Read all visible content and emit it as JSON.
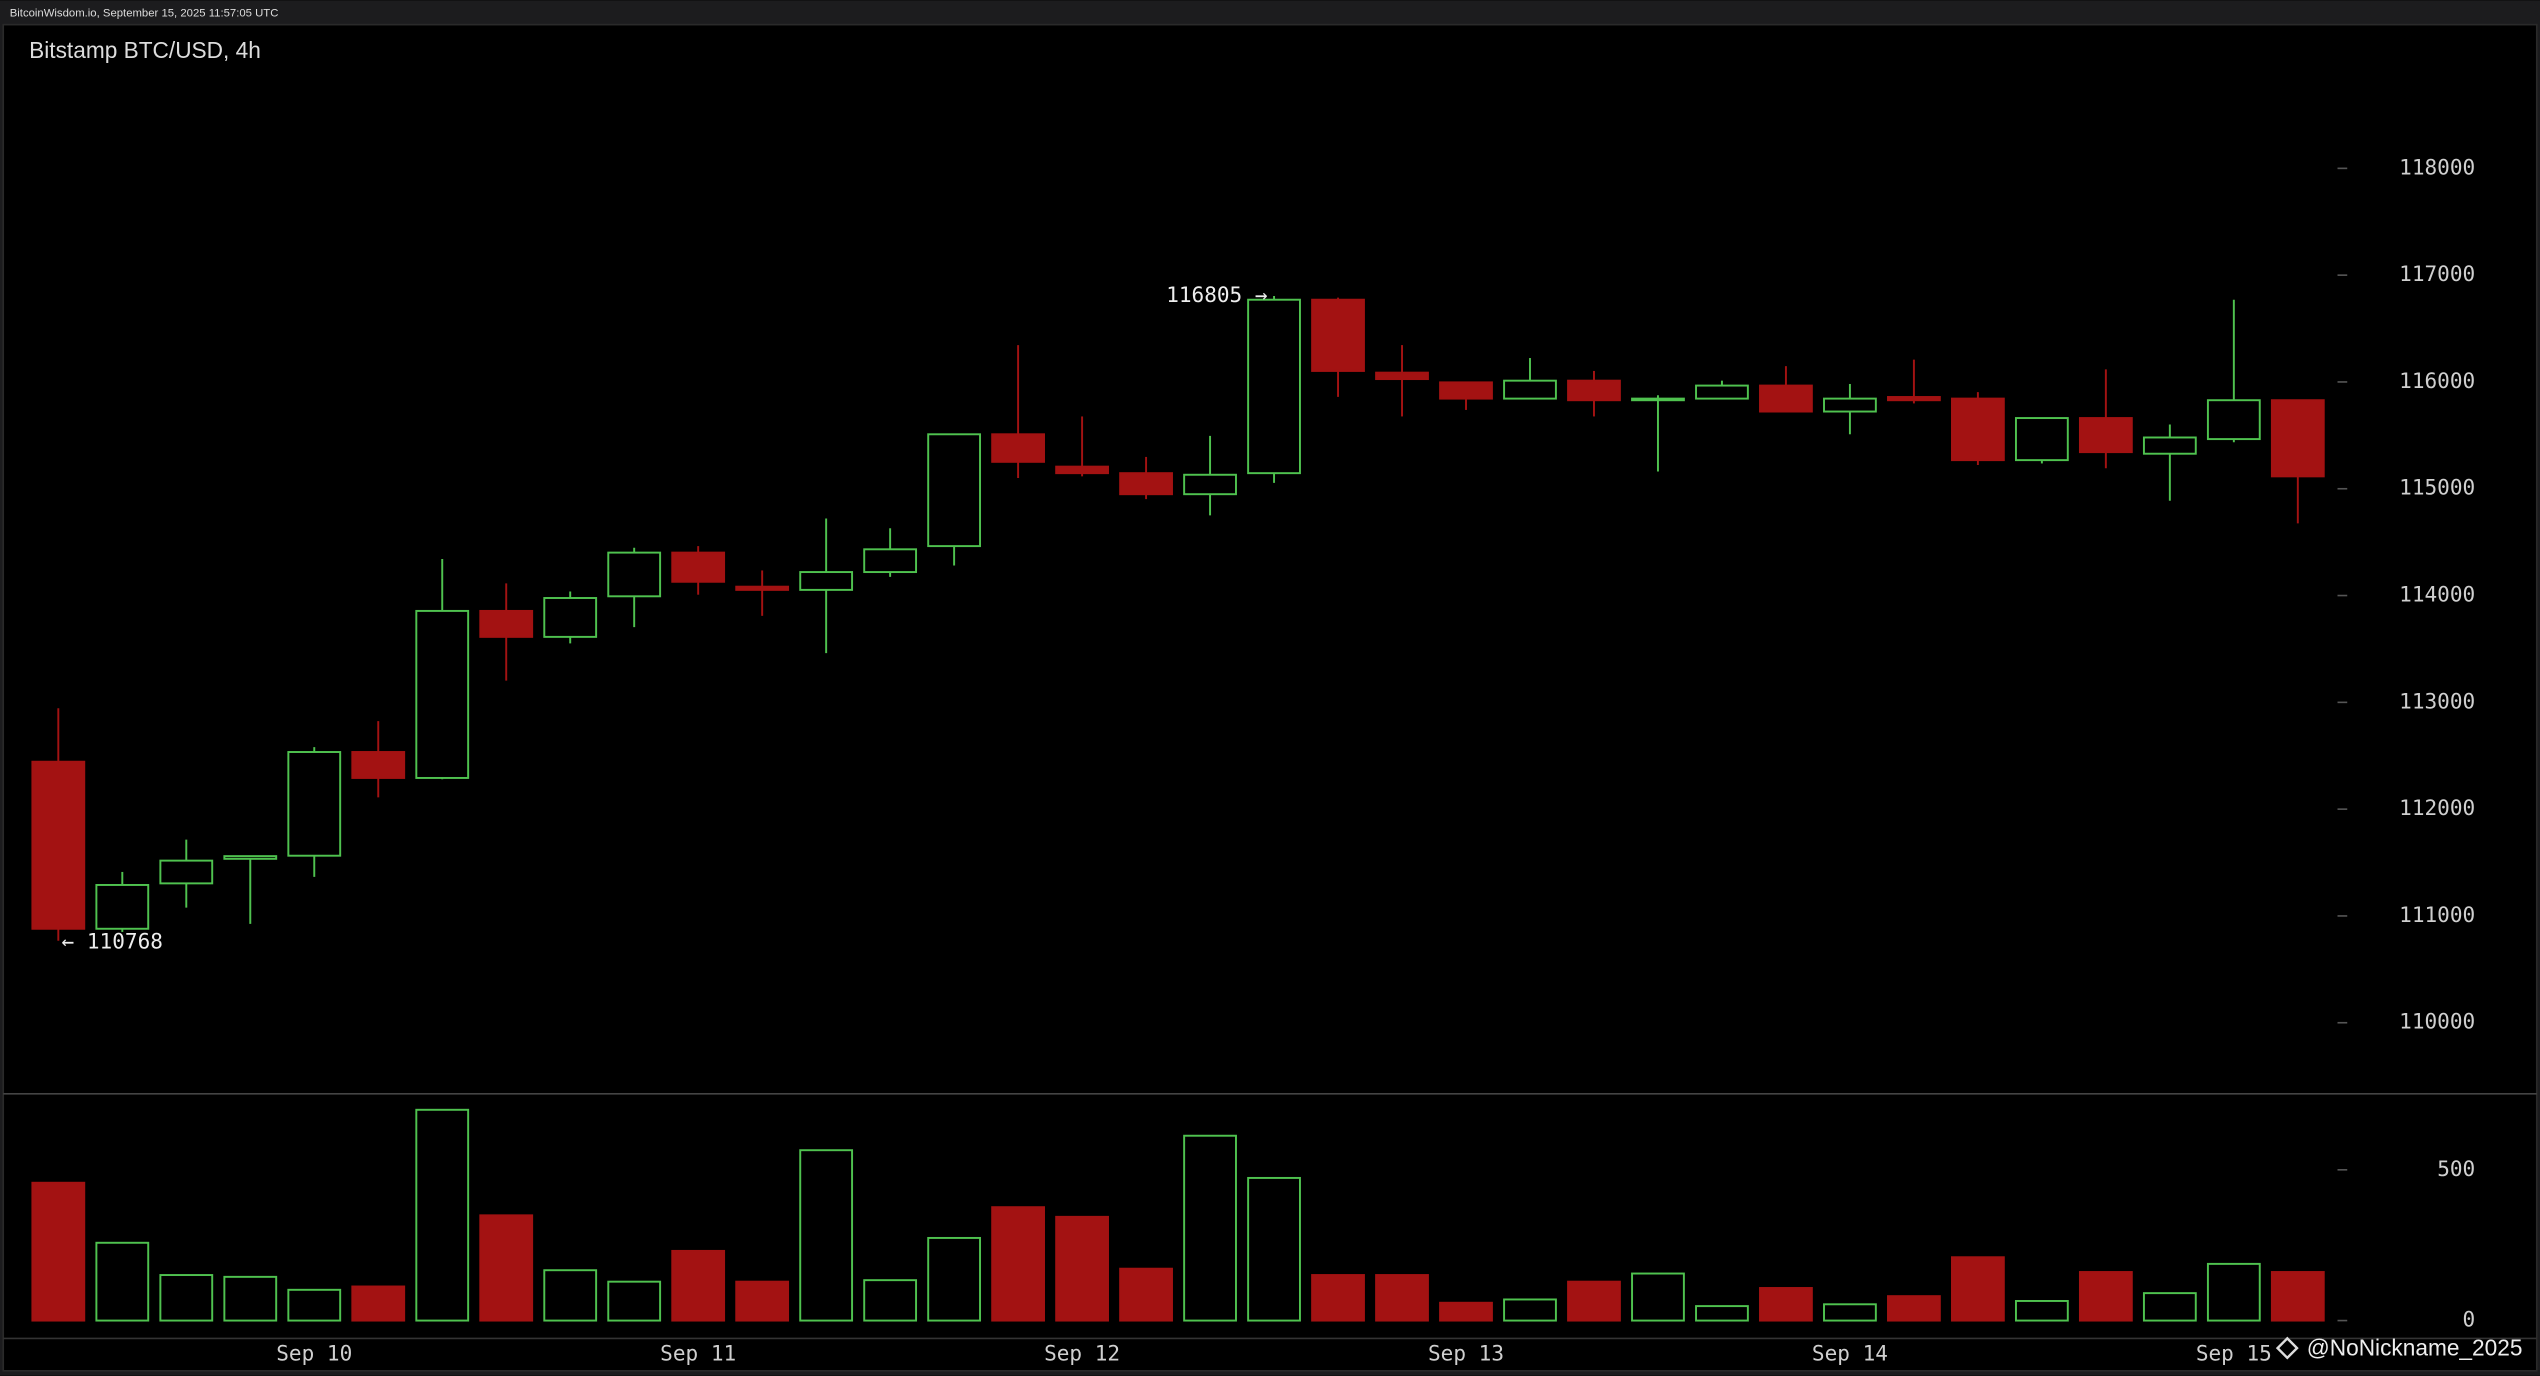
{
  "header": {
    "text": "BitcoinWisdom.io, September 15, 2025 11:57:05 UTC"
  },
  "watermark": "@NoNickname_2025",
  "chart_data": [
    {
      "type": "candlestick",
      "title": "Bitstamp BTC/USD, 4h",
      "categories": [
        null,
        null,
        null,
        null,
        "Sep 10",
        null,
        null,
        null,
        null,
        null,
        "Sep 11",
        null,
        null,
        null,
        null,
        null,
        "Sep 12",
        null,
        null,
        null,
        null,
        null,
        "Sep 13",
        null,
        null,
        null,
        null,
        null,
        "Sep 14",
        null,
        null,
        null,
        null,
        null,
        "Sep 15",
        null
      ],
      "open": [
        112444,
        110880,
        111305,
        111535,
        111564,
        112535,
        112292,
        113856,
        113613,
        113993,
        114402,
        114083,
        114053,
        114220,
        114463,
        115510,
        115207,
        115146,
        114949,
        115146,
        116770,
        116087,
        115996,
        115844,
        116012,
        115829,
        115844,
        115966,
        115723,
        115859,
        115844,
        115268,
        115662,
        115328,
        115465,
        115829
      ],
      "high": [
        112945,
        111412,
        111715,
        111564,
        112581,
        112824,
        114342,
        114114,
        114038,
        114448,
        114463,
        114235,
        114721,
        114630,
        115510,
        116345,
        115677,
        115298,
        115495,
        116805,
        116790,
        116345,
        115996,
        116224,
        116103,
        115875,
        116012,
        116148,
        115981,
        116209,
        115905,
        115662,
        116118,
        115602,
        116770,
        115829
      ],
      "low": [
        110768,
        110850,
        111078,
        110926,
        111366,
        112110,
        112280,
        113203,
        113552,
        113704,
        114008,
        113810,
        113461,
        114175,
        114281,
        115101,
        115116,
        114903,
        114751,
        115055,
        115860,
        115677,
        115738,
        115844,
        115677,
        115161,
        115844,
        115723,
        115510,
        115799,
        115222,
        115237,
        115192,
        114888,
        115435,
        114676
      ],
      "close": [
        110880,
        111290,
        111518,
        111560,
        112535,
        112292,
        113856,
        113613,
        113977,
        114402,
        114129,
        114053,
        114220,
        114433,
        115510,
        115252,
        115146,
        114949,
        115131,
        116770,
        116103,
        116027,
        115844,
        116012,
        115829,
        115844,
        115966,
        115723,
        115844,
        115829,
        115268,
        115662,
        115343,
        115480,
        115829,
        115116
      ],
      "up_color": "#4fc24f",
      "down_color": "#a31212",
      "max_label": "116805 →",
      "min_label": "← 110768",
      "ylim": [
        109350,
        119300
      ],
      "yticks": [
        110000,
        111000,
        112000,
        113000,
        114000,
        115000,
        116000,
        117000,
        118000
      ]
    },
    {
      "type": "volume",
      "values": [
        457,
        258,
        151,
        145,
        102,
        113,
        699,
        349,
        167,
        129,
        231,
        129,
        565,
        134,
        274,
        376,
        344,
        172,
        613,
        473,
        151,
        151,
        59,
        70,
        129,
        156,
        48,
        108,
        54,
        81,
        210,
        65,
        161,
        91,
        188,
        161
      ],
      "ylim": [
        0,
        736
      ],
      "yticks": [
        0,
        500
      ]
    }
  ]
}
